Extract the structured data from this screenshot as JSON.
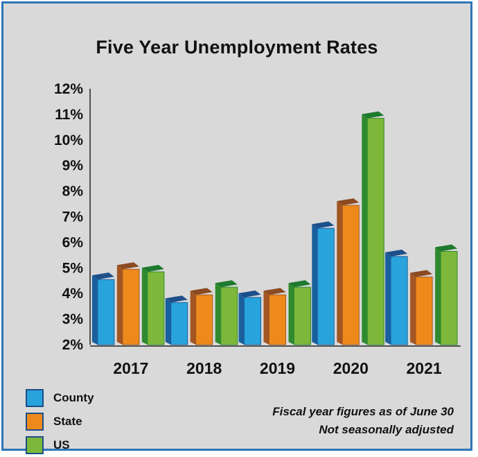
{
  "colors": {
    "County": {
      "front": "#29a3dc",
      "side": "#1a5f9e",
      "top": "#1d4f8a"
    },
    "State": {
      "front": "#ee8a1c",
      "side": "#a35622",
      "top": "#8b4a22"
    },
    "US": {
      "front": "#7db83a",
      "side": "#2f8a2f",
      "top": "#1e7a2e"
    }
  },
  "chart_data": {
    "type": "bar",
    "title": "Five Year Unemployment Rates",
    "categories": [
      "2017",
      "2018",
      "2019",
      "2020",
      "2021"
    ],
    "series": [
      {
        "name": "County",
        "values": [
          4.6,
          3.7,
          3.9,
          6.6,
          5.5
        ]
      },
      {
        "name": "State",
        "values": [
          5.0,
          4.0,
          4.0,
          7.5,
          4.7
        ]
      },
      {
        "name": "US",
        "values": [
          4.9,
          4.3,
          4.3,
          10.9,
          5.7
        ]
      }
    ],
    "ylim": [
      2,
      12
    ],
    "yticks": [
      "2%",
      "3%",
      "4%",
      "5%",
      "6%",
      "7%",
      "8%",
      "9%",
      "10%",
      "11%",
      "12%"
    ],
    "legend_position": "bottom-left",
    "grid": false,
    "notes": [
      "Fiscal year figures as of June 30",
      "Not seasonally adjusted"
    ]
  }
}
